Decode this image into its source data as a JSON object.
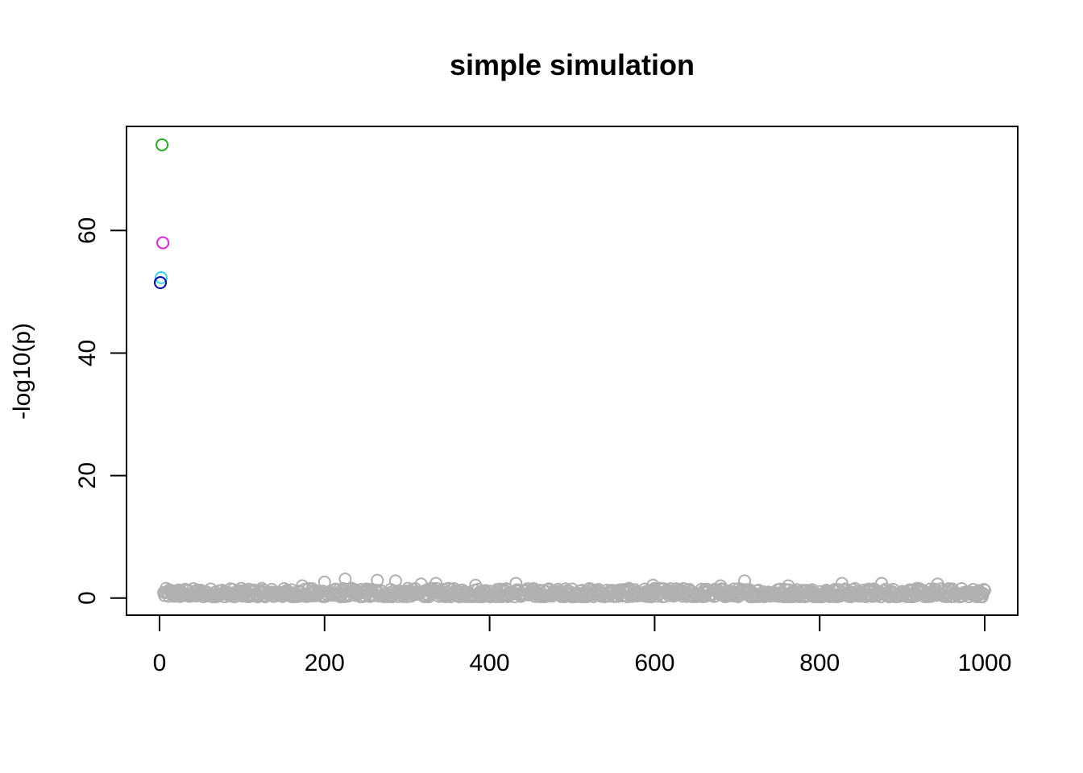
{
  "chart_data": {
    "type": "scatter",
    "title": "simple simulation",
    "xlabel": "",
    "ylabel": "-log10(p)",
    "xlim": [
      -40,
      1040
    ],
    "ylim": [
      -2.8,
      77.0
    ],
    "x_ticks": [
      0,
      200,
      400,
      600,
      800,
      1000
    ],
    "y_ticks": [
      0,
      20,
      40,
      60
    ],
    "grid": false,
    "legend": "none",
    "highlight_points": [
      {
        "x": 3,
        "y": 74.0,
        "color": "#22b022"
      },
      {
        "x": 4,
        "y": 58.0,
        "color": "#e020e0"
      },
      {
        "x": 2,
        "y": 52.3,
        "color": "#30d8e8"
      },
      {
        "x": 1,
        "y": 51.5,
        "color": "#0000cc"
      }
    ],
    "background_series": {
      "color": "#b0b0b0",
      "x_start": 5,
      "x_end": 1000,
      "count": 996,
      "notable_points": [
        {
          "x": 200,
          "y": 2.6
        },
        {
          "x": 225,
          "y": 3.1
        },
        {
          "x": 264,
          "y": 2.9
        },
        {
          "x": 286,
          "y": 2.8
        },
        {
          "x": 317,
          "y": 2.3
        },
        {
          "x": 335,
          "y": 2.4
        },
        {
          "x": 432,
          "y": 2.4
        },
        {
          "x": 598,
          "y": 2.1
        },
        {
          "x": 709,
          "y": 2.8
        },
        {
          "x": 827,
          "y": 2.4
        },
        {
          "x": 875,
          "y": 2.4
        },
        {
          "x": 943,
          "y": 2.3
        },
        {
          "x": 173,
          "y": 2.0
        },
        {
          "x": 383,
          "y": 2.1
        },
        {
          "x": 680,
          "y": 2.0
        },
        {
          "x": 762,
          "y": 2.0
        }
      ],
      "typical_max": 1.6,
      "typical_min": 0.2
    }
  }
}
